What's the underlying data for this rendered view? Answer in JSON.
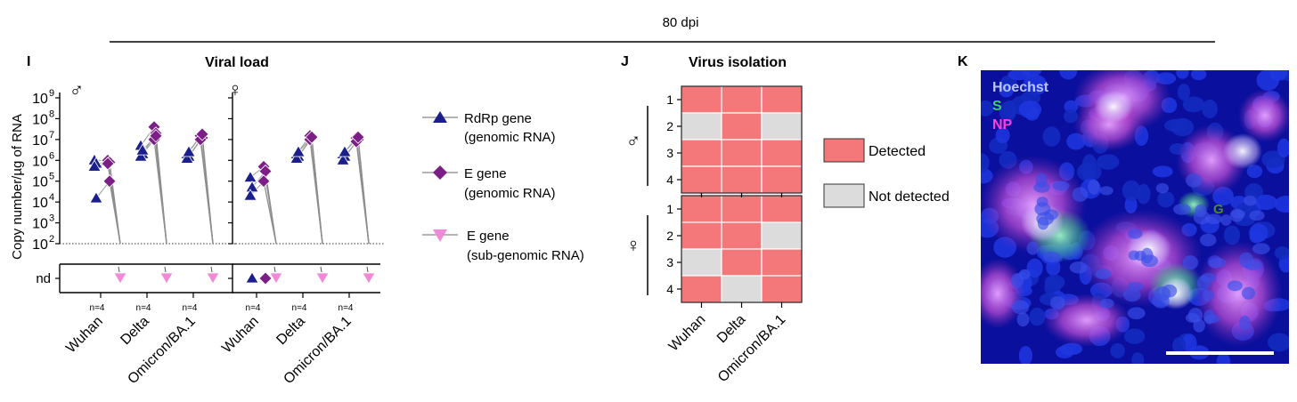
{
  "header": {
    "timepoint": "80 dpi"
  },
  "panels": {
    "I": {
      "letter": "I",
      "title": "Viral load",
      "ylabel": "Copy number/µg of RNA",
      "nd_label": "nd",
      "yticks": [
        "10",
        "10",
        "10",
        "10",
        "10",
        "10",
        "10",
        "10"
      ],
      "yexps": [
        "9",
        "8",
        "7",
        "6",
        "5",
        "4",
        "3",
        "2"
      ],
      "sex_male": "♂",
      "sex_female": "♀",
      "n_label": "n=4",
      "categories": [
        "Wuhan",
        "Delta",
        "Omicron/BA.1"
      ]
    },
    "legend": {
      "rdrp": {
        "line1": "RdRp gene",
        "line2": "(genomic RNA)",
        "color": "#1a1f8c",
        "icon": "triangle-up"
      },
      "egene": {
        "line1": "E gene",
        "line2": "(genomic RNA)",
        "color": "#7b1f86",
        "icon": "diamond"
      },
      "sgrna": {
        "line1": "E gene",
        "line2": "(sub-genomic RNA)",
        "color": "#f08ad8",
        "icon": "triangle-down"
      }
    },
    "J": {
      "letter": "J",
      "title": "Virus isolation",
      "row_numbers": [
        "1",
        "2",
        "3",
        "4"
      ],
      "categories": [
        "Wuhan",
        "Delta",
        "Omicron/BA.1"
      ],
      "male_grid": [
        [
          1,
          1,
          1
        ],
        [
          0,
          1,
          0
        ],
        [
          1,
          1,
          1
        ],
        [
          1,
          1,
          1
        ]
      ],
      "female_grid": [
        [
          1,
          1,
          1
        ],
        [
          1,
          1,
          0
        ],
        [
          0,
          1,
          1
        ],
        [
          1,
          0,
          1
        ]
      ],
      "legend_detected": "Detected",
      "legend_not_detected": "Not detected",
      "color_detected": "#f4777a",
      "color_not_detected": "#dcdcdc"
    },
    "K": {
      "letter": "K",
      "channel_hoechst": "Hoechst",
      "channel_s": "S",
      "channel_np": "NP",
      "region_label": "G"
    }
  },
  "chart_data": {
    "type": "scatter",
    "title": "Viral load",
    "ylabel": "Copy number/µg of RNA",
    "yscale": "log",
    "ylim": [
      100,
      1000000000
    ],
    "categories": [
      "Wuhan",
      "Delta",
      "Omicron/BA.1"
    ],
    "panels": [
      {
        "sex": "♂",
        "series": [
          {
            "name": "RdRp gene (genomic RNA)",
            "values": [
              [
                1000000,
                700000,
                500000,
                15000
              ],
              [
                5000000,
                2000000,
                1500000,
                3000000
              ],
              [
                2000000,
                1500000,
                1200000,
                2500000
              ]
            ]
          },
          {
            "name": "E gene (genomic RNA)",
            "values": [
              [
                1000000,
                800000,
                700000,
                100000
              ],
              [
                40000000,
                20000000,
                10000000,
                15000000
              ],
              [
                15000000,
                12000000,
                10000000,
                18000000
              ]
            ]
          },
          {
            "name": "E gene (sub-genomic RNA)",
            "values": [
              [
                "nd",
                "nd",
                "nd",
                "nd"
              ],
              [
                "nd",
                "nd",
                "nd",
                "nd"
              ],
              [
                "nd",
                "nd",
                "nd",
                "nd"
              ]
            ]
          }
        ]
      },
      {
        "sex": "♀",
        "series": [
          {
            "name": "RdRp gene (genomic RNA)",
            "values": [
              [
                150000,
                50000,
                20000,
                "nd"
              ],
              [
                2000000,
                1500000,
                1200000,
                2500000
              ],
              [
                2000000,
                1500000,
                1000000,
                2500000
              ]
            ]
          },
          {
            "name": "E gene (genomic RNA)",
            "values": [
              [
                500000,
                300000,
                100000,
                "nd"
              ],
              [
                15000000,
                12000000,
                10000000,
                13000000
              ],
              [
                12000000,
                10000000,
                8000000,
                13000000
              ]
            ]
          },
          {
            "name": "E gene (sub-genomic RNA)",
            "values": [
              [
                "nd",
                "nd",
                "nd",
                "nd"
              ],
              [
                "nd",
                "nd",
                "nd",
                "nd"
              ],
              [
                "nd",
                "nd",
                "nd",
                "nd"
              ]
            ]
          }
        ]
      }
    ]
  }
}
